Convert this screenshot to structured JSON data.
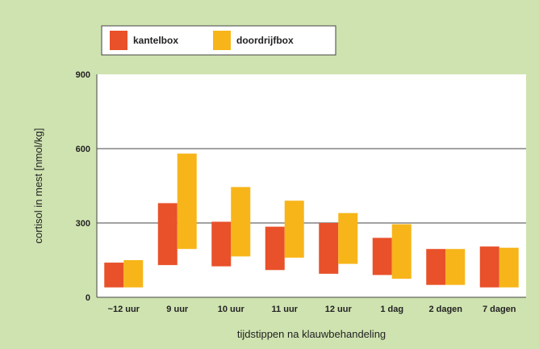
{
  "chart_data": {
    "type": "bar",
    "subtype": "floating-range",
    "title": "",
    "xlabel": "tijdstippen na klauwbehandeling",
    "ylabel": "cortisol in mest [nmol/kg]",
    "ylim": [
      0,
      900
    ],
    "yticks": [
      "0",
      "300",
      "600",
      "900"
    ],
    "grid": true,
    "legend_position": "top-left",
    "categories": [
      "~12 uur",
      "9 uur",
      "10 uur",
      "11 uur",
      "12 uur",
      "1 dag",
      "2 dagen",
      "7 dagen"
    ],
    "series": [
      {
        "name": "kantelbox",
        "color": "#e8512a",
        "low": [
          40,
          130,
          125,
          110,
          95,
          90,
          50,
          40
        ],
        "high": [
          140,
          380,
          305,
          285,
          300,
          240,
          195,
          205
        ]
      },
      {
        "name": "doordrijfbox",
        "color": "#f7b519",
        "low": [
          40,
          195,
          165,
          160,
          135,
          75,
          50,
          40
        ],
        "high": [
          150,
          580,
          445,
          390,
          340,
          295,
          195,
          200
        ]
      }
    ],
    "colors": {
      "background": "#cfe3b0",
      "plot_area": "#ffffff",
      "gridline": "#444444"
    }
  }
}
